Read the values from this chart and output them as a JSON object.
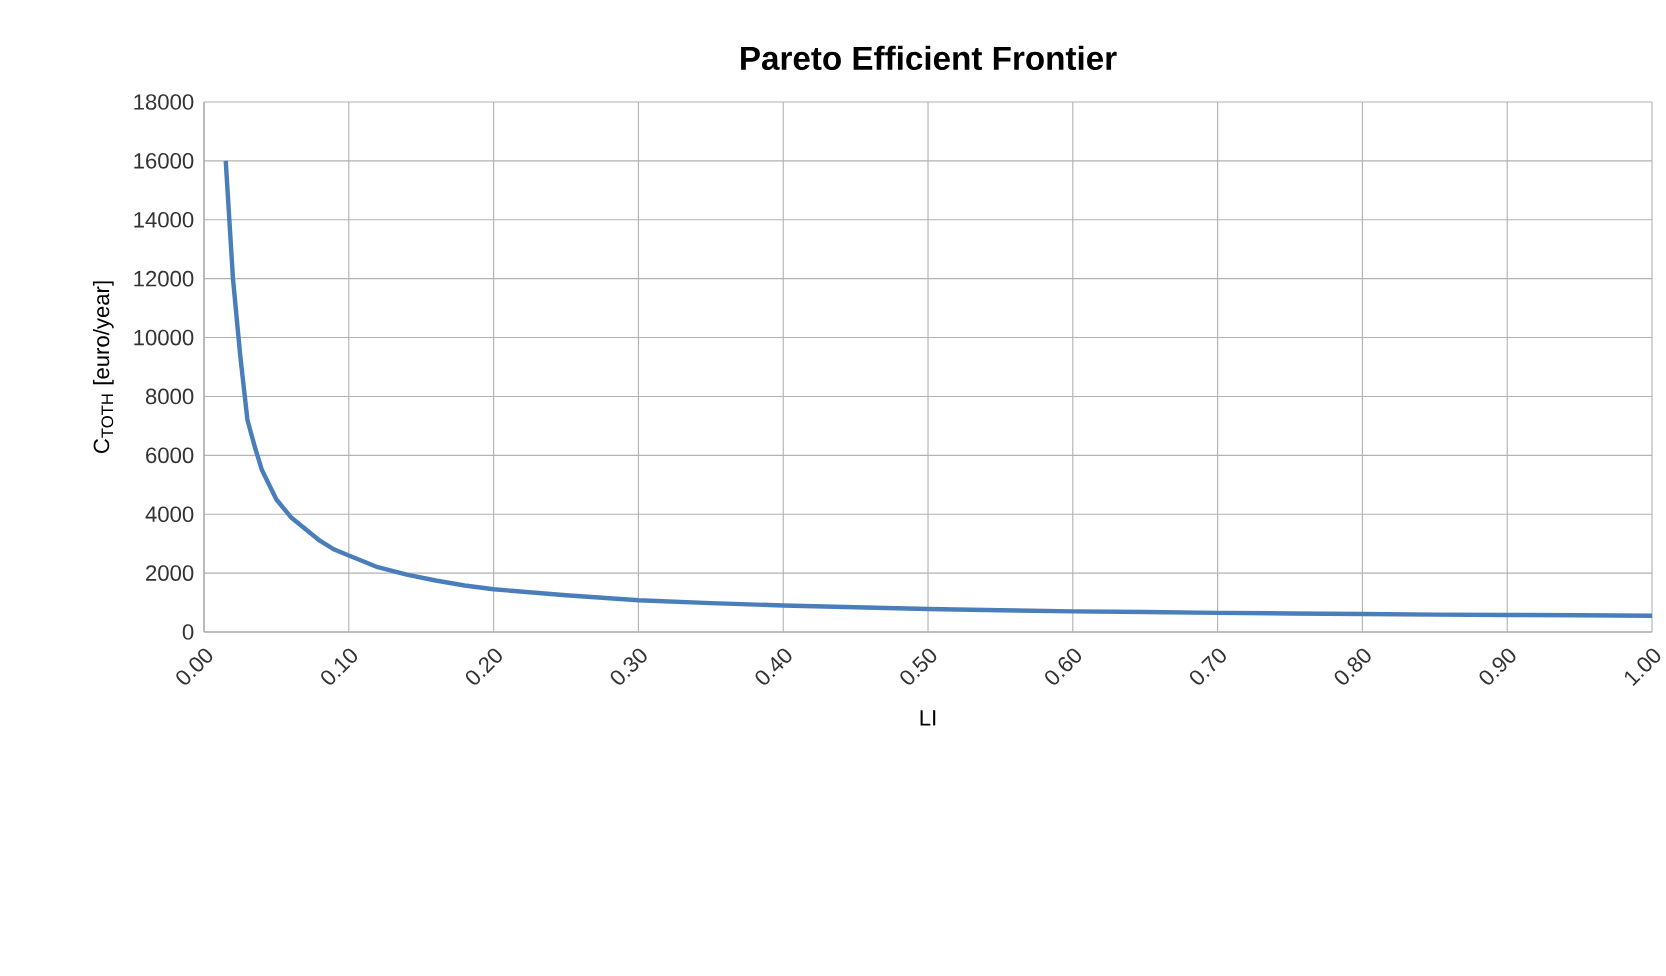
{
  "chart_data": {
    "type": "line",
    "title": "Pareto Efficient Frontier",
    "xlabel": "LI",
    "ylabel": "C$_{TOTH}$ [euro/year]",
    "x": [
      0.015,
      0.02,
      0.025,
      0.03,
      0.035,
      0.04,
      0.05,
      0.06,
      0.07,
      0.08,
      0.09,
      0.1,
      0.12,
      0.14,
      0.16,
      0.18,
      0.2,
      0.25,
      0.3,
      0.35,
      0.4,
      0.45,
      0.5,
      0.55,
      0.6,
      0.65,
      0.7,
      0.75,
      0.8,
      0.85,
      0.9,
      0.95,
      1.0
    ],
    "series": [
      {
        "color": "#4a7ebb",
        "values": [
          16000,
          12000,
          9400,
          7200,
          6300,
          5500,
          4500,
          3900,
          3500,
          3100,
          2800,
          2600,
          2200,
          1950,
          1750,
          1580,
          1450,
          1250,
          1080,
          980,
          900,
          840,
          780,
          740,
          700,
          680,
          650,
          630,
          610,
          590,
          580,
          570,
          550
        ]
      }
    ],
    "xlim": [
      0,
      1
    ],
    "ylim": [
      0,
      18000
    ],
    "xticks": [
      {
        "value": 0,
        "label": "0.00"
      },
      {
        "value": 0.1,
        "label": "0.10"
      },
      {
        "value": 0.2,
        "label": "0.20"
      },
      {
        "value": 0.3,
        "label": "0.30"
      },
      {
        "value": 0.4,
        "label": "0.40"
      },
      {
        "value": 0.5,
        "label": "0.50"
      },
      {
        "value": 0.6,
        "label": "0.60"
      },
      {
        "value": 0.7,
        "label": "0.70"
      },
      {
        "value": 0.8,
        "label": "0.80"
      },
      {
        "value": 0.9,
        "label": "0.90"
      },
      {
        "value": 1.0,
        "label": "1.00"
      }
    ],
    "yticks": [
      0,
      2000,
      4000,
      6000,
      8000,
      10000,
      12000,
      14000,
      16000,
      18000
    ],
    "grid": true,
    "marker": "none",
    "line_style": "solid"
  }
}
